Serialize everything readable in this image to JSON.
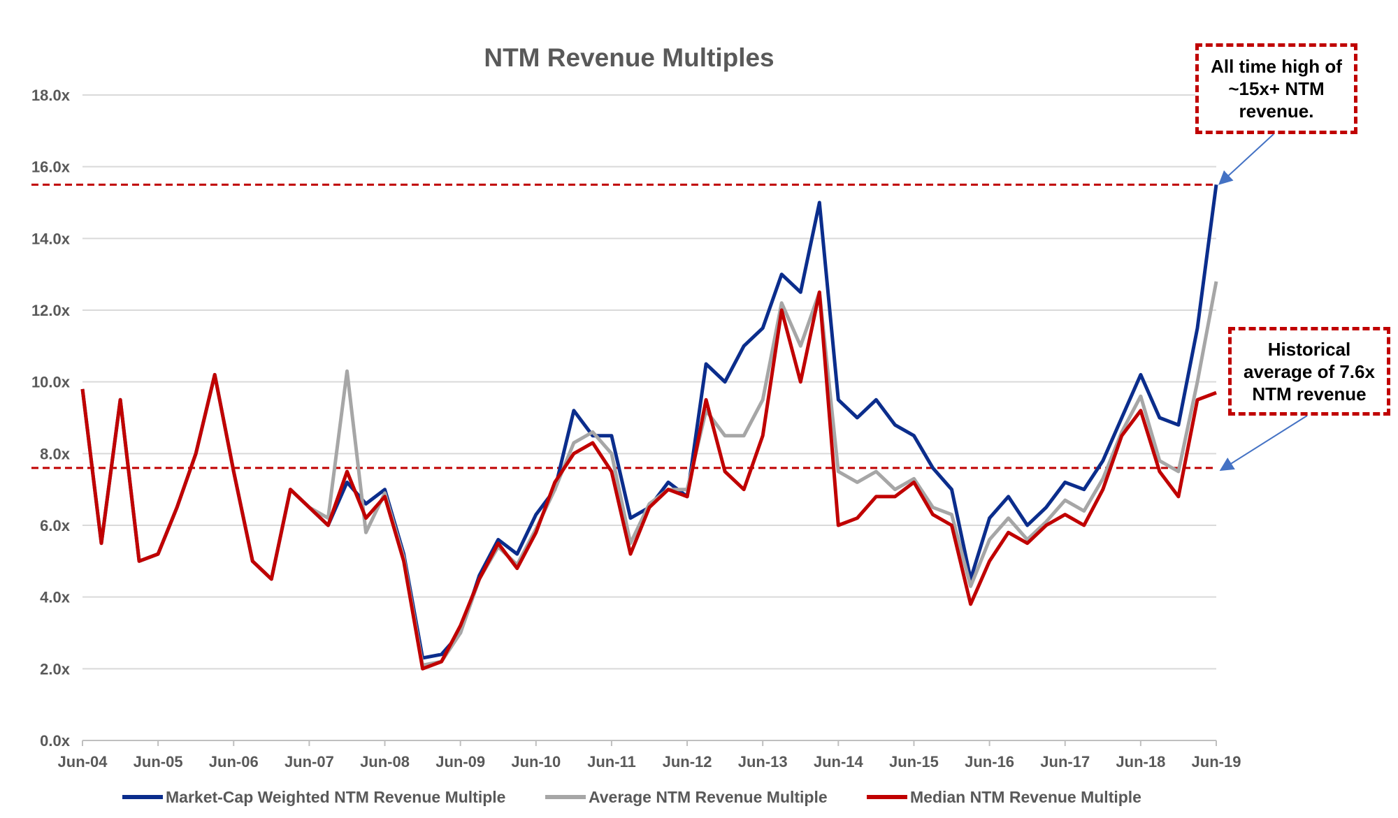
{
  "chart_data": {
    "type": "line",
    "title": "NTM Revenue Multiples",
    "xlabel": "",
    "ylabel": "",
    "ylim": [
      0,
      18
    ],
    "yticks": [
      "0.0x",
      "2.0x",
      "4.0x",
      "6.0x",
      "8.0x",
      "10.0x",
      "12.0x",
      "14.0x",
      "16.0x",
      "18.0x"
    ],
    "xticks": [
      "Jun-04",
      "Jun-05",
      "Jun-06",
      "Jun-07",
      "Jun-08",
      "Jun-09",
      "Jun-10",
      "Jun-11",
      "Jun-12",
      "Jun-13",
      "Jun-14",
      "Jun-15",
      "Jun-16",
      "Jun-17",
      "Jun-18",
      "Jun-19"
    ],
    "grid": true,
    "legend_position": "bottom",
    "x": [
      "2004-06",
      "2004-09",
      "2004-12",
      "2005-03",
      "2005-06",
      "2005-09",
      "2005-12",
      "2006-03",
      "2006-06",
      "2006-09",
      "2006-12",
      "2007-03",
      "2007-06",
      "2007-09",
      "2007-12",
      "2008-03",
      "2008-06",
      "2008-09",
      "2008-12",
      "2009-03",
      "2009-06",
      "2009-09",
      "2009-12",
      "2010-03",
      "2010-06",
      "2010-09",
      "2010-12",
      "2011-03",
      "2011-06",
      "2011-09",
      "2011-12",
      "2012-03",
      "2012-06",
      "2012-09",
      "2012-12",
      "2013-03",
      "2013-06",
      "2013-09",
      "2013-12",
      "2014-03",
      "2014-06",
      "2014-09",
      "2014-12",
      "2015-03",
      "2015-06",
      "2015-09",
      "2015-12",
      "2016-03",
      "2016-06",
      "2016-09",
      "2016-12",
      "2017-03",
      "2017-06",
      "2017-09",
      "2017-12",
      "2018-03",
      "2018-06",
      "2018-09",
      "2018-12",
      "2019-03",
      "2019-06"
    ],
    "series": [
      {
        "name": "Market-Cap Weighted NTM Revenue Multiple",
        "color": "#0b2d8c",
        "values": [
          9.8,
          5.5,
          9.5,
          5.0,
          5.2,
          6.5,
          8.0,
          10.2,
          7.5,
          5.0,
          4.5,
          7.0,
          6.5,
          6.0,
          7.2,
          6.6,
          7.0,
          5.2,
          2.3,
          2.4,
          3.0,
          4.6,
          5.6,
          5.2,
          6.3,
          7.0,
          9.2,
          8.5,
          8.5,
          6.2,
          6.5,
          7.2,
          6.8,
          10.5,
          10.0,
          11.0,
          11.5,
          13.0,
          12.5,
          15.0,
          9.5,
          9.0,
          9.5,
          8.8,
          8.5,
          7.6,
          7.0,
          4.5,
          6.2,
          6.8,
          6.0,
          6.5,
          7.2,
          7.0,
          7.8,
          9.0,
          10.2,
          9.0,
          8.8,
          11.5,
          15.5
        ]
      },
      {
        "name": "Average NTM Revenue Multiple",
        "color": "#a6a6a6",
        "values": [
          9.8,
          5.5,
          9.5,
          5.0,
          5.2,
          6.5,
          8.0,
          10.2,
          7.5,
          5.0,
          4.5,
          7.0,
          6.5,
          6.2,
          10.3,
          5.8,
          6.9,
          5.1,
          2.1,
          2.2,
          3.0,
          4.5,
          5.4,
          4.9,
          5.9,
          7.0,
          8.3,
          8.6,
          8.0,
          5.5,
          6.6,
          7.0,
          7.0,
          9.2,
          8.5,
          8.5,
          9.5,
          12.2,
          11.0,
          12.5,
          7.5,
          7.2,
          7.5,
          7.0,
          7.3,
          6.5,
          6.3,
          4.3,
          5.6,
          6.2,
          5.6,
          6.1,
          6.7,
          6.4,
          7.3,
          8.6,
          9.6,
          7.8,
          7.5,
          10.0,
          12.8
        ]
      },
      {
        "name": "Median NTM Revenue Multiple",
        "color": "#c00000",
        "values": [
          9.8,
          5.5,
          9.5,
          5.0,
          5.2,
          6.5,
          8.0,
          10.2,
          7.5,
          5.0,
          4.5,
          7.0,
          6.5,
          6.0,
          7.5,
          6.2,
          6.8,
          5.0,
          2.0,
          2.2,
          3.2,
          4.5,
          5.5,
          4.8,
          5.8,
          7.2,
          8.0,
          8.3,
          7.5,
          5.2,
          6.5,
          7.0,
          6.8,
          9.5,
          7.5,
          7.0,
          8.5,
          12.0,
          10.0,
          12.5,
          6.0,
          6.2,
          6.8,
          6.8,
          7.2,
          6.3,
          6.0,
          3.8,
          5.0,
          5.8,
          5.5,
          6.0,
          6.3,
          6.0,
          7.0,
          8.5,
          9.2,
          7.5,
          6.8,
          9.5,
          9.7
        ]
      }
    ],
    "reference_lines": [
      {
        "value": 15.5,
        "color": "#c00000",
        "style": "dashed"
      },
      {
        "value": 7.6,
        "color": "#c00000",
        "style": "dashed"
      }
    ],
    "annotations": [
      {
        "text": "All time high of ~15x+ NTM revenue."
      },
      {
        "text": "Historical average of 7.6x NTM revenue"
      }
    ]
  }
}
